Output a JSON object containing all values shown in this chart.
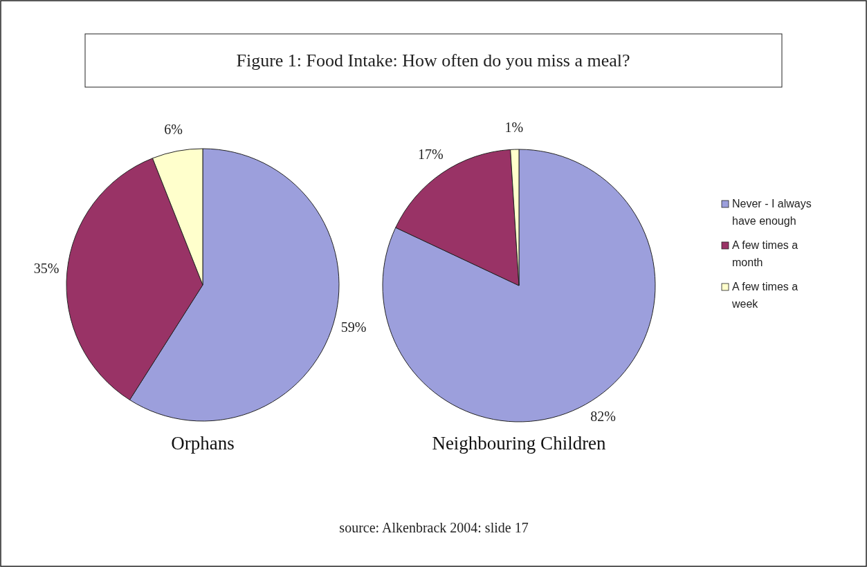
{
  "chart_data": [
    {
      "type": "pie",
      "title": "Figure 1: Food Intake: How often do you miss a meal?",
      "xlabel": "Orphans",
      "categories": [
        null,
        null,
        null
      ],
      "values": [
        59,
        35,
        6
      ],
      "colors": [
        "#9c9fdc",
        "#993366",
        "#ffffcc"
      ],
      "value_labels": [
        "59%",
        "35%",
        "6%"
      ]
    },
    {
      "type": "pie",
      "xlabel": "Neighbouring Children",
      "categories": [
        "Never - I always have enough",
        "A few times a month",
        "A few times a week"
      ],
      "values": [
        82,
        17,
        1
      ],
      "colors": [
        "#9c9fdc",
        "#993366",
        "#ffffcc"
      ],
      "value_labels": [
        "82%",
        "17%",
        "1%"
      ],
      "legend": "right",
      "annotations": [
        "source: Alkenbrack 2004: slide 17"
      ]
    }
  ]
}
